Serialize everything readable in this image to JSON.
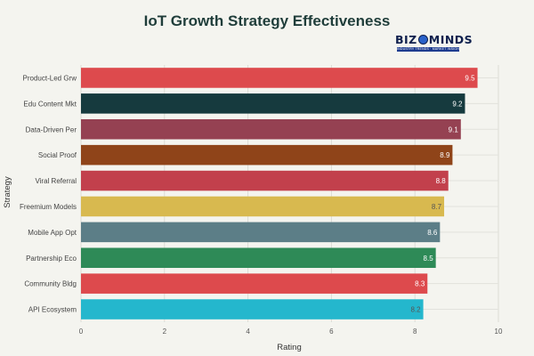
{
  "logo": {
    "name_part1": "BIZ",
    "name_part2": "MINDS",
    "tagline": "INDUSTRY TRENDS · MARKET INSIGHTS",
    "globe_icon": "globe-icon"
  },
  "chart_data": {
    "type": "bar",
    "orientation": "horizontal",
    "title": "IoT Growth Strategy Effectiveness",
    "xlabel": "Rating",
    "ylabel": "Strategy",
    "xlim": [
      0,
      10
    ],
    "xticks": [
      0,
      2,
      4,
      6,
      8,
      10
    ],
    "grid": true,
    "categories": [
      "Product-Led Grw",
      "Edu Content Mkt",
      "Data-Driven Per",
      "Social Proof",
      "Viral Referral",
      "Freemium Models",
      "Mobile App Opt",
      "Partnership Eco",
      "Community Bldg",
      "API Ecosystem"
    ],
    "values": [
      9.5,
      9.2,
      9.1,
      8.9,
      8.8,
      8.7,
      8.6,
      8.5,
      8.3,
      8.2
    ],
    "value_labels": [
      "9.5",
      "9.2",
      "9.1",
      "8.9",
      "8.8",
      "8.7",
      "8.6",
      "8.5",
      "8.3",
      "8.2"
    ],
    "colors": [
      "#dd4a4d",
      "#163a3e",
      "#954152",
      "#8f4419",
      "#c2404c",
      "#d8b94f",
      "#5c7e87",
      "#2e8a57",
      "#dd4a4d",
      "#24b7cd"
    ],
    "label_colors": [
      "#ffffff",
      "#ffffff",
      "#ffffff",
      "#ffffff",
      "#ffffff",
      "#555555",
      "#ffffff",
      "#ffffff",
      "#ffffff",
      "#555555"
    ]
  }
}
